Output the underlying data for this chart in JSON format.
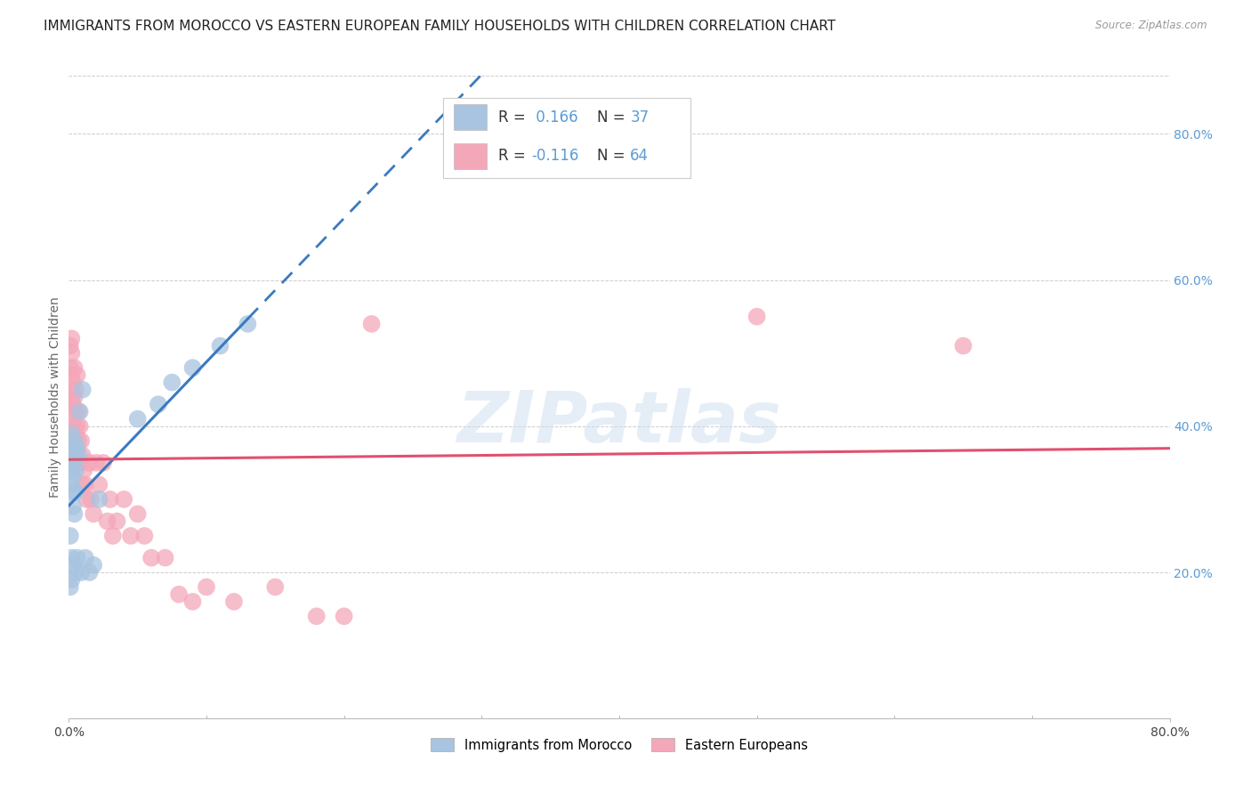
{
  "title": "IMMIGRANTS FROM MOROCCO VS EASTERN EUROPEAN FAMILY HOUSEHOLDS WITH CHILDREN CORRELATION CHART",
  "source": "Source: ZipAtlas.com",
  "ylabel": "Family Households with Children",
  "xlim": [
    0.0,
    0.8
  ],
  "ylim": [
    0.0,
    0.88
  ],
  "yticks_right": [
    0.2,
    0.4,
    0.6,
    0.8
  ],
  "ytick_labels_right": [
    "20.0%",
    "40.0%",
    "60.0%",
    "80.0%"
  ],
  "watermark": "ZIPatlas",
  "morocco_color": "#a8c4e0",
  "morocco_trend_color": "#3a7abf",
  "eastern_color": "#f4a7b9",
  "eastern_trend_color": "#e05070",
  "grid_color": "#cccccc",
  "background_color": "#ffffff",
  "title_fontsize": 11,
  "axis_label_fontsize": 10,
  "tick_fontsize": 10,
  "right_tick_color": "#5b9bd5",
  "morocco_x": [
    0.001,
    0.001,
    0.001,
    0.001,
    0.002,
    0.002,
    0.002,
    0.002,
    0.002,
    0.003,
    0.003,
    0.003,
    0.003,
    0.003,
    0.004,
    0.004,
    0.004,
    0.004,
    0.005,
    0.005,
    0.005,
    0.006,
    0.006,
    0.007,
    0.008,
    0.009,
    0.01,
    0.012,
    0.015,
    0.018,
    0.022,
    0.05,
    0.065,
    0.075,
    0.09,
    0.11,
    0.13
  ],
  "morocco_y": [
    0.38,
    0.32,
    0.25,
    0.18,
    0.39,
    0.36,
    0.34,
    0.22,
    0.19,
    0.37,
    0.35,
    0.33,
    0.29,
    0.21,
    0.38,
    0.36,
    0.31,
    0.28,
    0.34,
    0.31,
    0.2,
    0.37,
    0.22,
    0.36,
    0.42,
    0.2,
    0.45,
    0.22,
    0.2,
    0.21,
    0.3,
    0.41,
    0.43,
    0.46,
    0.48,
    0.51,
    0.54
  ],
  "eastern_x": [
    0.001,
    0.001,
    0.001,
    0.001,
    0.001,
    0.002,
    0.002,
    0.002,
    0.002,
    0.002,
    0.002,
    0.002,
    0.003,
    0.003,
    0.003,
    0.003,
    0.003,
    0.004,
    0.004,
    0.004,
    0.004,
    0.005,
    0.005,
    0.005,
    0.005,
    0.006,
    0.006,
    0.006,
    0.007,
    0.007,
    0.008,
    0.008,
    0.009,
    0.01,
    0.01,
    0.011,
    0.012,
    0.013,
    0.015,
    0.016,
    0.018,
    0.02,
    0.022,
    0.025,
    0.028,
    0.03,
    0.032,
    0.035,
    0.04,
    0.045,
    0.05,
    0.055,
    0.06,
    0.07,
    0.08,
    0.09,
    0.1,
    0.12,
    0.15,
    0.18,
    0.2,
    0.22,
    0.5,
    0.65
  ],
  "eastern_y": [
    0.51,
    0.48,
    0.45,
    0.43,
    0.38,
    0.52,
    0.5,
    0.47,
    0.44,
    0.42,
    0.38,
    0.35,
    0.46,
    0.43,
    0.4,
    0.38,
    0.35,
    0.48,
    0.44,
    0.4,
    0.37,
    0.45,
    0.42,
    0.39,
    0.36,
    0.47,
    0.4,
    0.35,
    0.42,
    0.38,
    0.4,
    0.35,
    0.38,
    0.36,
    0.32,
    0.34,
    0.32,
    0.3,
    0.35,
    0.3,
    0.28,
    0.35,
    0.32,
    0.35,
    0.27,
    0.3,
    0.25,
    0.27,
    0.3,
    0.25,
    0.28,
    0.25,
    0.22,
    0.22,
    0.17,
    0.16,
    0.18,
    0.16,
    0.18,
    0.14,
    0.14,
    0.54,
    0.55,
    0.51
  ],
  "morocco_R": "0.166",
  "morocco_N": "37",
  "eastern_R": "-0.116",
  "eastern_N": "64"
}
